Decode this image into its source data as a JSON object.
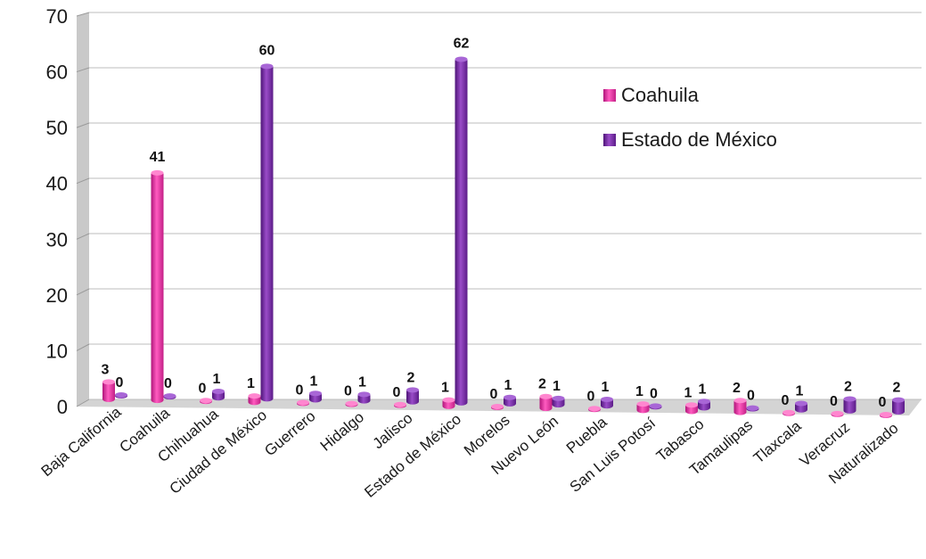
{
  "chart_data": {
    "type": "bar",
    "title": "",
    "xlabel": "",
    "ylabel": "",
    "ylim": [
      0,
      70
    ],
    "yticks": [
      0,
      10,
      20,
      30,
      40,
      50,
      60,
      70
    ],
    "grid": true,
    "legend_position": "right",
    "categories": [
      "Baja California",
      "Coahuila",
      "Chihuahua",
      "Ciudad de México",
      "Guerrero",
      "Hidalgo",
      "Jalisco",
      "Estado de México",
      "Morelos",
      "Nuevo León",
      "Puebla",
      "San Luis Potosí",
      "Tabasco",
      "Tamaulipas",
      "Tlaxcala",
      "Veracruz",
      "Naturalizado"
    ],
    "series": [
      {
        "name": "Coahuila",
        "color": "#e0399e",
        "values": [
          3,
          41,
          0,
          1,
          0,
          0,
          0,
          1,
          0,
          2,
          0,
          1,
          1,
          2,
          0,
          0,
          0
        ]
      },
      {
        "name": "Estado de México",
        "color": "#7b2fa6",
        "values": [
          0,
          0,
          1,
          60,
          1,
          1,
          2,
          62,
          1,
          1,
          1,
          0,
          1,
          0,
          1,
          2,
          2
        ]
      }
    ]
  }
}
